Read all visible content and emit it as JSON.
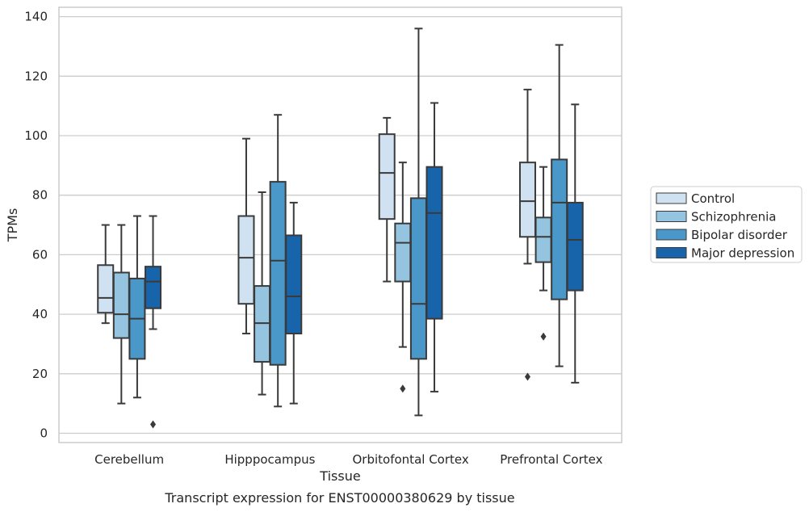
{
  "chart_data": {
    "type": "box",
    "xlabel": "Tissue",
    "ylabel": "TPMs",
    "caption": "Transcript expression for ENST00000380629 by tissue",
    "ylim": [
      -3,
      141
    ],
    "yticks": [
      0,
      20,
      40,
      60,
      80,
      100,
      120,
      140
    ],
    "grid": "horizontal",
    "legend_position": "right",
    "categories": [
      "Cerebellum",
      "Hipppocampus",
      "Orbitofontal Cortex",
      "Prefrontal Cortex"
    ],
    "series": [
      {
        "name": "Control",
        "color": "#d0e1f2",
        "boxes": [
          {
            "whislo": 37,
            "q1": 40.5,
            "med": 45.5,
            "q3": 56.5,
            "whishi": 70,
            "fliers": []
          },
          {
            "whislo": 33.5,
            "q1": 43.5,
            "med": 59,
            "q3": 73,
            "whishi": 99,
            "fliers": []
          },
          {
            "whislo": 51,
            "q1": 72,
            "med": 87.5,
            "q3": 100.5,
            "whishi": 106,
            "fliers": []
          },
          {
            "whislo": 57,
            "q1": 66,
            "med": 78,
            "q3": 91,
            "whishi": 115.5,
            "fliers": [
              19
            ]
          }
        ]
      },
      {
        "name": "Schizophrenia",
        "color": "#94c4df",
        "boxes": [
          {
            "whislo": 10,
            "q1": 32,
            "med": 40,
            "q3": 54,
            "whishi": 70,
            "fliers": []
          },
          {
            "whislo": 13,
            "q1": 24,
            "med": 37,
            "q3": 49.5,
            "whishi": 81,
            "fliers": []
          },
          {
            "whislo": 29,
            "q1": 51,
            "med": 64,
            "q3": 70.5,
            "whishi": 91,
            "fliers": [
              15
            ]
          },
          {
            "whislo": 48,
            "q1": 57.5,
            "med": 66,
            "q3": 72.5,
            "whishi": 89.5,
            "fliers": [
              32.5
            ]
          }
        ]
      },
      {
        "name": "Bipolar disorder",
        "color": "#4a98c9",
        "boxes": [
          {
            "whislo": 12,
            "q1": 25,
            "med": 38.5,
            "q3": 52,
            "whishi": 73,
            "fliers": []
          },
          {
            "whislo": 9,
            "q1": 23,
            "med": 58,
            "q3": 84.5,
            "whishi": 107,
            "fliers": []
          },
          {
            "whislo": 6,
            "q1": 25,
            "med": 43.5,
            "q3": 79,
            "whishi": 136,
            "fliers": []
          },
          {
            "whislo": 22.5,
            "q1": 45,
            "med": 77.5,
            "q3": 92,
            "whishi": 130.5,
            "fliers": []
          }
        ]
      },
      {
        "name": "Major depression",
        "color": "#1764ab",
        "boxes": [
          {
            "whislo": 35,
            "q1": 42,
            "med": 51,
            "q3": 56,
            "whishi": 73,
            "fliers": [
              3
            ]
          },
          {
            "whislo": 10,
            "q1": 33.5,
            "med": 46,
            "q3": 66.5,
            "whishi": 77.5,
            "fliers": []
          },
          {
            "whislo": 14,
            "q1": 38.5,
            "med": 74,
            "q3": 89.5,
            "whishi": 111,
            "fliers": []
          },
          {
            "whislo": 17,
            "q1": 48,
            "med": 65,
            "q3": 77.5,
            "whishi": 110.5,
            "fliers": []
          }
        ]
      }
    ]
  }
}
